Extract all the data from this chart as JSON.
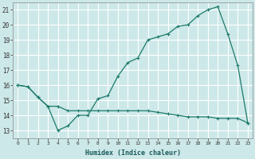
{
  "xlabel": "Humidex (Indice chaleur)",
  "ylabel": "",
  "background_color": "#cde8e8",
  "grid_color": "#ffffff",
  "line_color": "#1a7a6a",
  "xlim": [
    -0.5,
    23.5
  ],
  "ylim": [
    12.5,
    21.5
  ],
  "xticks": [
    0,
    1,
    2,
    3,
    4,
    5,
    6,
    7,
    8,
    9,
    10,
    11,
    12,
    13,
    14,
    15,
    16,
    17,
    18,
    19,
    20,
    21,
    22,
    23
  ],
  "yticks": [
    13,
    14,
    15,
    16,
    17,
    18,
    19,
    20,
    21
  ],
  "line1_x": [
    0,
    1,
    2,
    3,
    4,
    5,
    6,
    7,
    8,
    9,
    10,
    11,
    12,
    13,
    14,
    15,
    16,
    17,
    18,
    19,
    20,
    21,
    22,
    23
  ],
  "line1_y": [
    16.0,
    15.9,
    15.2,
    14.6,
    13.0,
    13.3,
    14.0,
    14.0,
    15.1,
    15.3,
    16.6,
    17.5,
    17.8,
    19.0,
    19.2,
    19.4,
    19.9,
    20.0,
    20.6,
    21.0,
    21.2,
    19.4,
    17.3,
    13.5
  ],
  "line2_x": [
    0,
    1,
    2,
    3,
    4,
    5,
    6,
    7,
    8,
    9,
    10,
    11,
    12,
    13,
    14,
    15,
    16,
    17,
    18,
    19,
    20,
    21,
    22,
    23
  ],
  "line2_y": [
    16.0,
    15.9,
    15.2,
    14.6,
    14.6,
    14.3,
    14.3,
    14.3,
    14.3,
    14.3,
    14.3,
    14.3,
    14.3,
    14.3,
    14.2,
    14.1,
    14.0,
    13.9,
    13.9,
    13.9,
    13.8,
    13.8,
    13.8,
    13.5
  ],
  "xfontsize": 4.5,
  "yfontsize": 5.5,
  "xlabel_fontsize": 6.0
}
